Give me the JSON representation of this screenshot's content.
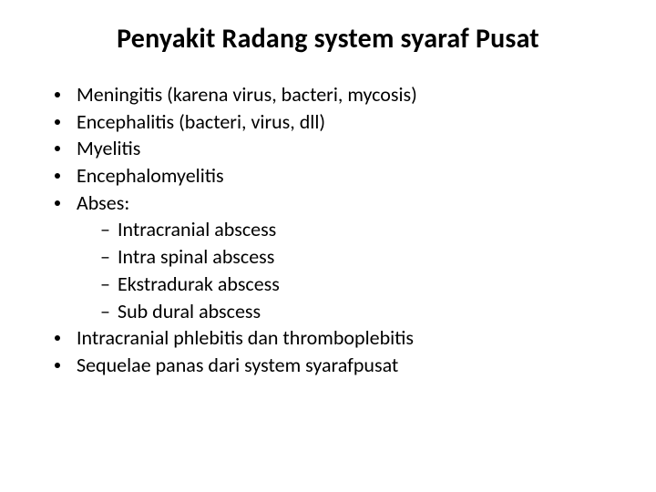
{
  "title": "Penyakit Radang system syaraf Pusat",
  "title_fontsize": 30,
  "title_weight": 700,
  "body_fontsize": 22,
  "text_color": "#000000",
  "background_color": "#ffffff",
  "bullets": [
    {
      "text": "Meningitis (karena virus, bacteri, mycosis)"
    },
    {
      "text": "Encephalitis (bacteri, virus, dll)"
    },
    {
      "text": "Myelitis"
    },
    {
      "text": "Encephalomyelitis"
    },
    {
      "text": "Abses:",
      "sub": [
        "Intracranial abscess",
        "Intra spinal abscess",
        "Ekstradurak abscess",
        "Sub dural abscess"
      ]
    },
    {
      "text": "Intracranial phlebitis dan thromboplebitis"
    },
    {
      "text": "Sequelae panas dari system syarafpusat"
    }
  ]
}
